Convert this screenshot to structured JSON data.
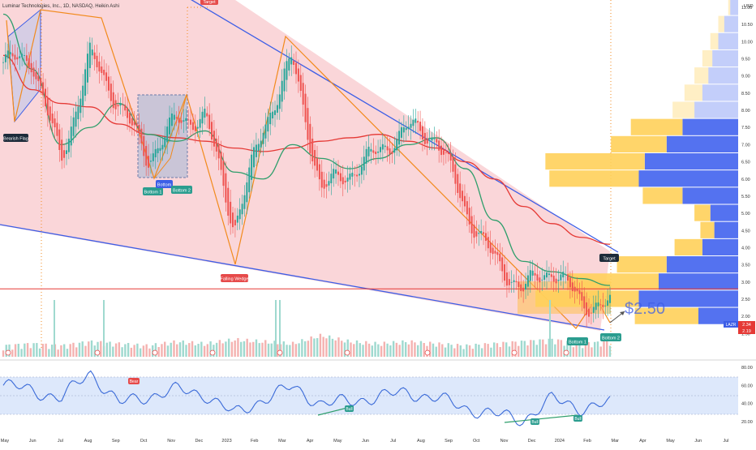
{
  "header": {
    "title": "Luminar Technologies, Inc., 1D, NASDAQ, Heikin Ashi"
  },
  "colors": {
    "up": "#26a69a",
    "down": "#ef5350",
    "wedge_fill": "#f8c8cc",
    "wedge_line": "#3d5ee6",
    "pattern_line": "#f28a1c",
    "ma_long": "#e53935",
    "ma_short": "#2e9e6b",
    "vp_up": "#ffd05a",
    "vp_down": "#5472f0",
    "rsi_line": "#3a6ad8",
    "rsi_band": "#dde8fb",
    "accent_label": "#2b9d8f",
    "bear_label": "#e64a4a",
    "dark_label": "#1d2b3a"
  },
  "price_axis": {
    "unit": "USD",
    "ticks": [
      "11.00",
      "10.50",
      "10.00",
      "9.50",
      "9.00",
      "8.50",
      "8.00",
      "7.50",
      "7.00",
      "6.50",
      "6.00",
      "5.50",
      "5.00",
      "4.50",
      "4.00",
      "3.50",
      "3.00",
      "2.50",
      "2.00",
      "1.50"
    ],
    "ticker_badge": "LAZR",
    "last_price": "2.34",
    "level_price": "2.19"
  },
  "rsi_axis": {
    "ticks": [
      "80.00",
      "60.00",
      "40.00",
      "20.00"
    ]
  },
  "time_axis": {
    "labels": [
      "May",
      "Jun",
      "Jul",
      "Aug",
      "Sep",
      "Oct",
      "Nov",
      "Dec",
      "2023",
      "Feb",
      "Mar",
      "Apr",
      "May",
      "Jun",
      "Jul",
      "Aug",
      "Sep",
      "Oct",
      "Nov",
      "Dec",
      "2024",
      "Feb",
      "Mar",
      "Apr",
      "May",
      "Jun",
      "Jul"
    ]
  },
  "annotations": {
    "bearish_flag": "Bearish Flag",
    "falling_wedge": "Falling Wedge",
    "target_top": "Target",
    "target_right": "Target",
    "bottom1_a": "Bottom 1",
    "bottom2_a": "Bottom 2",
    "bottom_mid": "Bottom",
    "bottom1_b": "Bottom 1",
    "bottom2_b": "Bottom 2",
    "price_callout": "$2.50",
    "bear": "Bear",
    "bull1": "Bull",
    "bull2": "Bull",
    "bull3": "Bull"
  },
  "chart_data": {
    "type": "line",
    "title": "Luminar Technologies, Inc., 1D, NASDAQ, Heikin Ashi",
    "ylabel": "USD",
    "ylim": [
      1.3,
      11.6
    ],
    "x": [
      "May 2022",
      "Jun 2022",
      "Jul 2022",
      "Aug 2022",
      "Sep 2022",
      "Oct 2022",
      "Nov 2022",
      "Dec 2022",
      "Jan 2023",
      "Feb 2023",
      "Mar 2023",
      "Apr 2023",
      "May 2023",
      "Jun 2023",
      "Jul 2023",
      "Aug 2023",
      "Sep 2023",
      "Oct 2023",
      "Nov 2023",
      "Dec 2023",
      "Jan 2024",
      "Feb 2024"
    ],
    "series": [
      {
        "values": [
          9.4,
          9.5,
          6.5,
          9.6,
          8.2,
          6.6,
          7.7,
          7.8,
          4.6,
          7.5,
          9.5,
          5.7,
          6.2,
          6.8,
          7.5,
          7.2,
          5.1,
          3.6,
          2.8,
          3.4,
          2.4,
          2.3
        ]
      },
      {
        "values": [
          9.6,
          8.6,
          8.2,
          8.1,
          7.6,
          7.3,
          7.2,
          7.1,
          6.9,
          6.8,
          6.9,
          7.1,
          7.2,
          7.3,
          7.1,
          6.9,
          6.5,
          6.0,
          5.2,
          4.7,
          4.3,
          4.1
        ]
      },
      {
        "values": [
          10.8,
          9.2,
          7.0,
          7.5,
          8.2,
          7.3,
          7.1,
          7.4,
          6.2,
          6.0,
          7.0,
          6.6,
          6.3,
          6.6,
          7.0,
          7.2,
          6.3,
          4.8,
          3.6,
          3.3,
          3.1,
          2.9
        ]
      }
    ],
    "volume": [
      3,
      4,
      3,
      5,
      4,
      3,
      5,
      4,
      6,
      5,
      4,
      8,
      5,
      4,
      5,
      4,
      3,
      4,
      5,
      6,
      4,
      5
    ],
    "rsi": {
      "ylim": [
        15,
        85
      ],
      "values": [
        60,
        55,
        45,
        75,
        40,
        48,
        55,
        50,
        28,
        45,
        58,
        40,
        42,
        48,
        52,
        46,
        35,
        28,
        22,
        45,
        35,
        40
      ]
    },
    "volume_profile": [
      {
        "price": 11.0,
        "up": 0.01,
        "down": 0.04
      },
      {
        "price": 10.5,
        "up": 0.03,
        "down": 0.07
      },
      {
        "price": 10.0,
        "up": 0.04,
        "down": 0.1
      },
      {
        "price": 9.5,
        "up": 0.05,
        "down": 0.13
      },
      {
        "price": 9.0,
        "up": 0.07,
        "down": 0.15
      },
      {
        "price": 8.5,
        "up": 0.09,
        "down": 0.18
      },
      {
        "price": 8.0,
        "up": 0.11,
        "down": 0.22
      },
      {
        "price": 7.5,
        "up": 0.26,
        "down": 0.28
      },
      {
        "price": 7.0,
        "up": 0.28,
        "down": 0.36
      },
      {
        "price": 6.5,
        "up": 0.5,
        "down": 0.47
      },
      {
        "price": 6.0,
        "up": 0.45,
        "down": 0.5
      },
      {
        "price": 5.5,
        "up": 0.2,
        "down": 0.28
      },
      {
        "price": 5.0,
        "up": 0.08,
        "down": 0.14
      },
      {
        "price": 4.5,
        "up": 0.07,
        "down": 0.12
      },
      {
        "price": 4.0,
        "up": 0.14,
        "down": 0.18
      },
      {
        "price": 3.5,
        "up": 0.25,
        "down": 0.36
      },
      {
        "price": 3.0,
        "up": 0.46,
        "down": 0.4
      },
      {
        "price": 2.5,
        "up": 0.52,
        "down": 0.5
      },
      {
        "price": 2.0,
        "up": 0.32,
        "down": 0.2
      }
    ],
    "horizontal_level": 2.8
  }
}
